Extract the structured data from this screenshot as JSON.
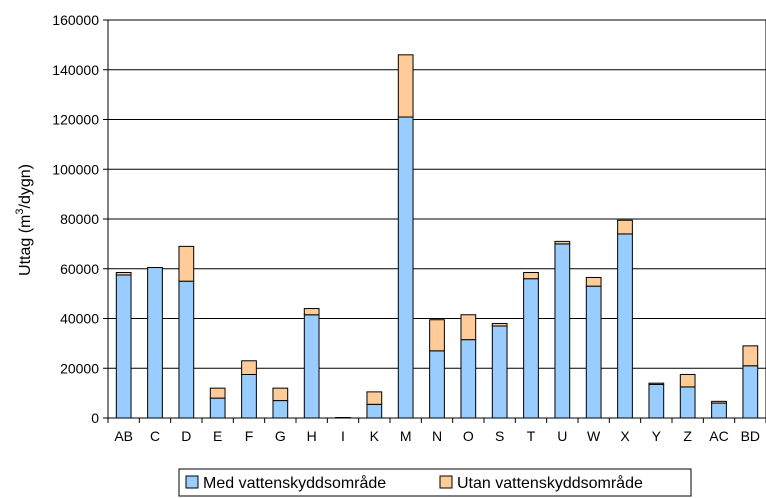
{
  "chart_data": {
    "type": "bar",
    "stacked": true,
    "ylabel_main": "Uttag (m",
    "ylabel_sup": "3",
    "ylabel_tail": "/dygn)",
    "ylim": [
      0,
      160000
    ],
    "yticks": [
      "0",
      "20000",
      "40000",
      "60000",
      "80000",
      "100000",
      "120000",
      "140000",
      "160000"
    ],
    "grid": true,
    "legend_position": "bottom",
    "categories": [
      "AB",
      "C",
      "D",
      "E",
      "F",
      "G",
      "H",
      "I",
      "K",
      "M",
      "N",
      "O",
      "S",
      "T",
      "U",
      "W",
      "X",
      "Y",
      "Z",
      "AC",
      "BD"
    ],
    "series": [
      {
        "name": "Med vattenskyddsområde",
        "color": "#99ccff",
        "values": [
          57500,
          60500,
          55000,
          8000,
          17500,
          7000,
          41500,
          200,
          5500,
          121000,
          27000,
          31500,
          37000,
          56000,
          70000,
          53000,
          74000,
          13500,
          12500,
          6000,
          21000
        ]
      },
      {
        "name": "Utan vattenskyddsområde",
        "color": "#ffcc99",
        "values": [
          1000,
          0,
          14000,
          4000,
          5500,
          5000,
          2500,
          0,
          5000,
          25000,
          12500,
          10000,
          1000,
          2500,
          1000,
          3500,
          5500,
          500,
          5000,
          700,
          8000
        ]
      }
    ]
  }
}
